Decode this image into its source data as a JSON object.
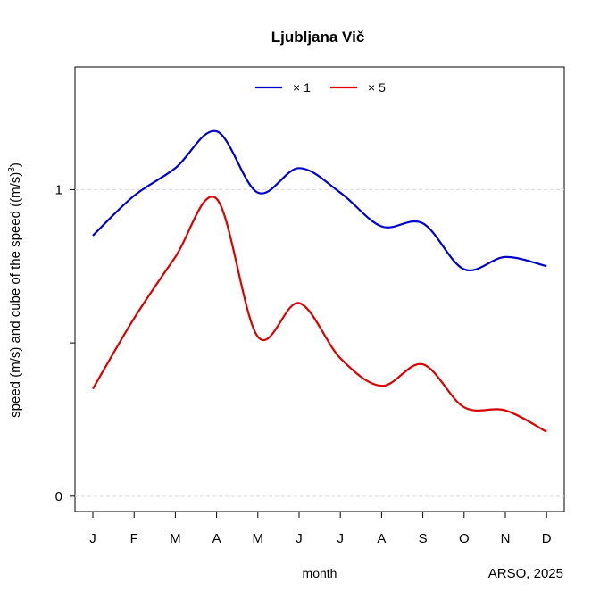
{
  "chart_data": {
    "type": "line",
    "title": "Ljubljana Vič",
    "xlabel": "month",
    "ylabel_main": "speed (m/s) and cube of the speed ((m/s)",
    "ylabel_sup": "3",
    "ylabel_close": ")",
    "source": "ARSO, 2025",
    "categories": [
      "J",
      "F",
      "M",
      "A",
      "M",
      "J",
      "J",
      "A",
      "S",
      "O",
      "N",
      "D"
    ],
    "y_ticks": [
      {
        "value": 0,
        "label": "0"
      },
      {
        "value": 1,
        "label": "1"
      }
    ],
    "y_minor_tick": 0.5,
    "ylim": [
      -0.05,
      1.4
    ],
    "grid": "horizontal dashed at 0 and 1",
    "legend_position": "top-center",
    "series": [
      {
        "name": "× 1",
        "color": "#0000cc",
        "values": [
          0.85,
          0.98,
          1.07,
          1.19,
          0.99,
          1.07,
          0.99,
          0.88,
          0.89,
          0.74,
          0.78,
          0.75
        ]
      },
      {
        "name": "× 5",
        "color": "#dd0000",
        "values": [
          0.35,
          0.58,
          0.78,
          0.97,
          0.52,
          0.63,
          0.45,
          0.36,
          0.43,
          0.29,
          0.28,
          0.21
        ]
      }
    ]
  }
}
